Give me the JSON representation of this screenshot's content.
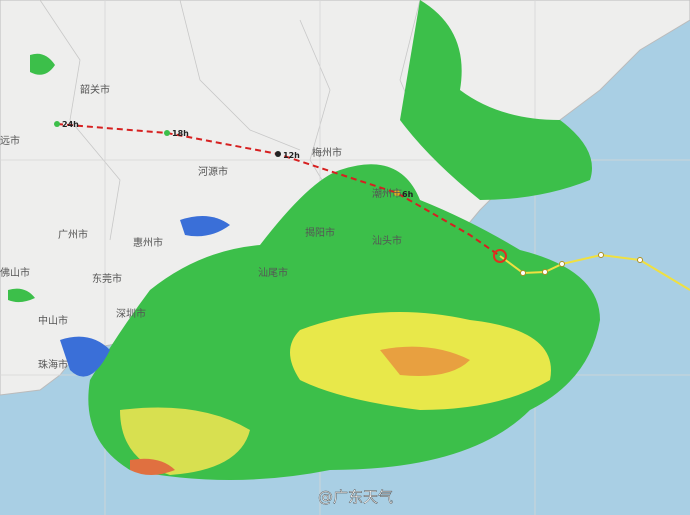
{
  "map": {
    "cities": [
      "远市",
      "韶关市",
      "河源市",
      "梅州市",
      "潮州市",
      "揭阳市",
      "汕头市",
      "汕尾市",
      "惠州市",
      "广州市",
      "东莞市",
      "深圳市",
      "佛山市",
      "中山市",
      "珠海市"
    ],
    "forecast_labels": [
      "24h",
      "18h",
      "12h",
      "6h"
    ],
    "watermark": "@广东天气"
  }
}
